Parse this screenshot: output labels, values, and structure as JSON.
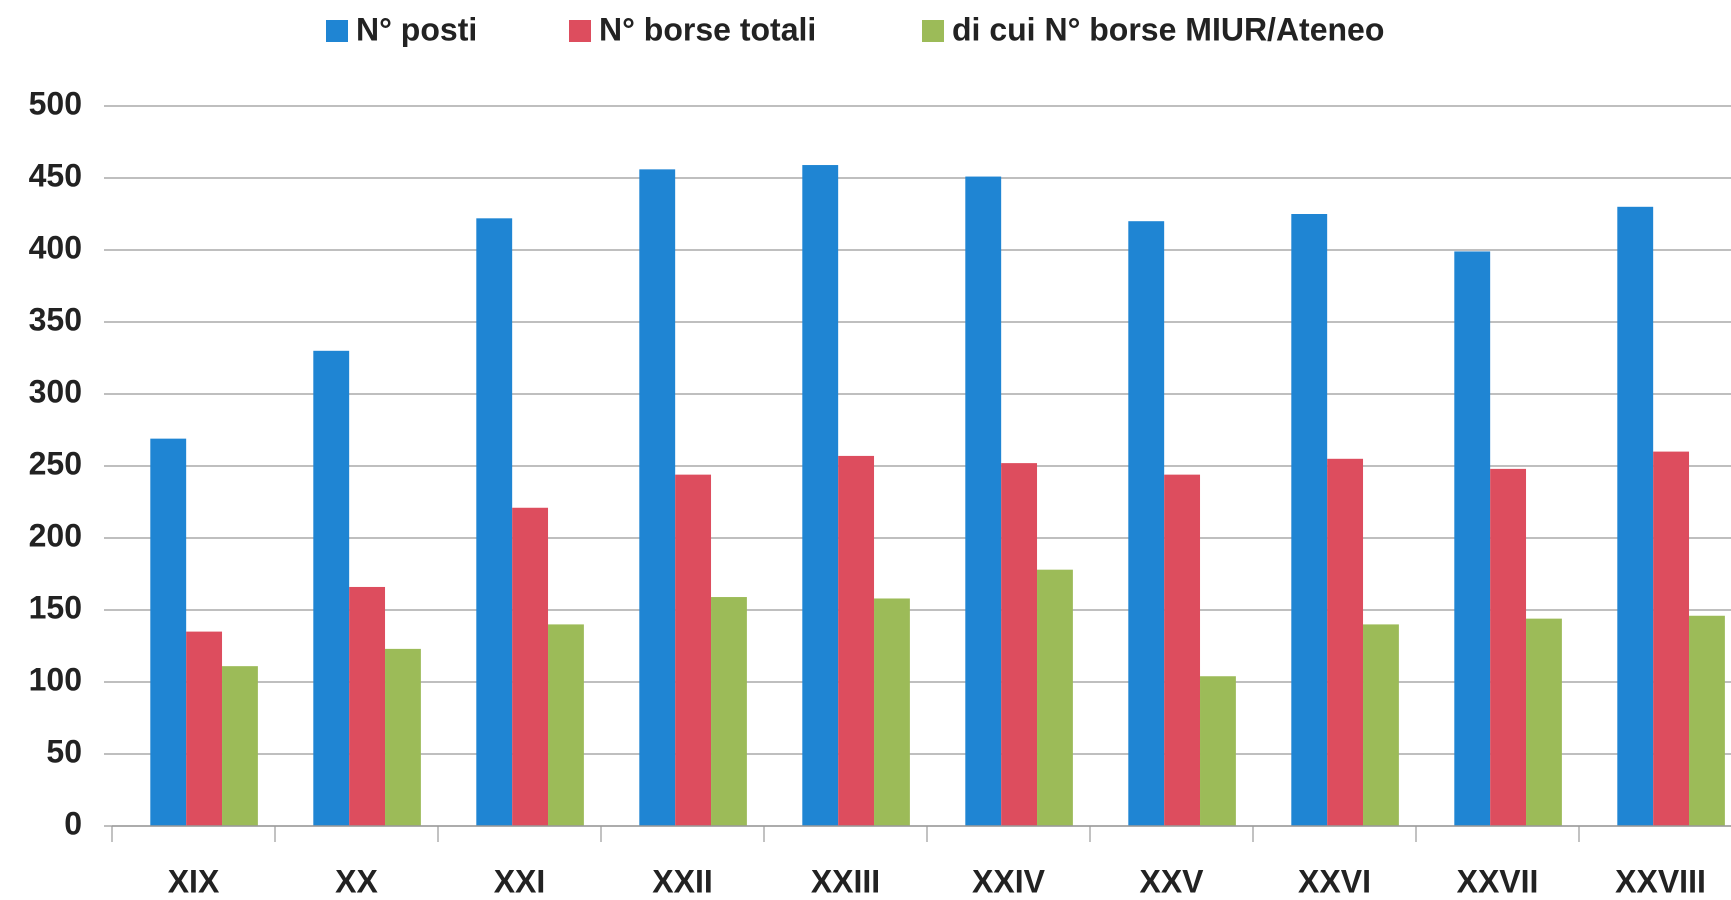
{
  "chart_data": {
    "type": "bar",
    "categories": [
      "XIX",
      "XX",
      "XXI",
      "XXII",
      "XXIII",
      "XXIV",
      "XXV",
      "XXVI",
      "XXVII",
      "XXVIII"
    ],
    "series": [
      {
        "name": "N° posti",
        "color": "#1f85d3",
        "values": [
          269,
          330,
          422,
          456,
          459,
          451,
          420,
          425,
          399,
          430
        ]
      },
      {
        "name": "N° borse totali",
        "color": "#dd4d5e",
        "values": [
          135,
          166,
          221,
          244,
          257,
          252,
          244,
          255,
          248,
          260
        ]
      },
      {
        "name": "di cui N° borse MIUR/Ateneo",
        "color": "#9cbb58",
        "values": [
          111,
          123,
          140,
          159,
          158,
          178,
          104,
          140,
          144,
          146
        ]
      }
    ],
    "ylim": [
      0,
      500
    ],
    "yticks": [
      0,
      50,
      100,
      150,
      200,
      250,
      300,
      350,
      400,
      450,
      500
    ],
    "grid": true,
    "legend": "top"
  }
}
